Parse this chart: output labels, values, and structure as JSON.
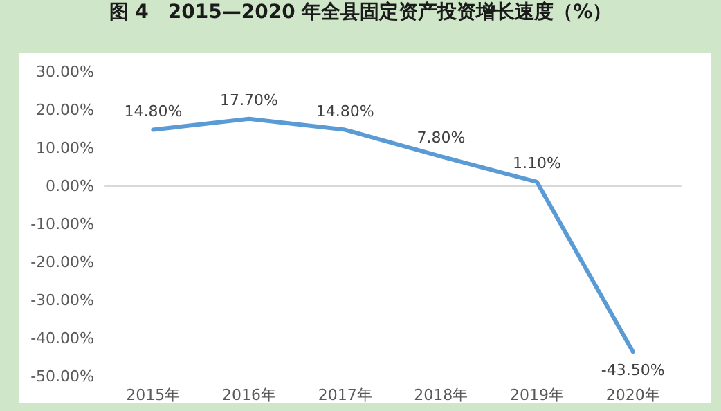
{
  "chart_data": {
    "type": "line",
    "title": "图 4　2015—2020 年全县固定资产投资增长速度（%）",
    "categories": [
      "2015年",
      "2016年",
      "2017年",
      "2018年",
      "2019年",
      "2020年"
    ],
    "series": [
      {
        "color": "#5b9bd5",
        "values": [
          14.8,
          17.7,
          14.8,
          7.8,
          1.1,
          -43.5
        ],
        "value_labels": [
          "14.80%",
          "17.70%",
          "14.80%",
          "7.80%",
          "1.10%",
          "-43.50%"
        ]
      }
    ],
    "ylim": [
      -50,
      30
    ],
    "yticks": [
      {
        "value": -50,
        "label": "-50.00%"
      },
      {
        "value": -40,
        "label": "-40.00%"
      },
      {
        "value": -30,
        "label": "-30.00%"
      },
      {
        "value": -20,
        "label": "-20.00%"
      },
      {
        "value": -10,
        "label": "-10.00%"
      },
      {
        "value": 0,
        "label": "0.00%"
      },
      {
        "value": 10,
        "label": "10.00%"
      },
      {
        "value": 20,
        "label": "20.00%"
      },
      {
        "value": 30,
        "label": "30.00%"
      }
    ],
    "marker": "none",
    "line_style": "solid"
  }
}
